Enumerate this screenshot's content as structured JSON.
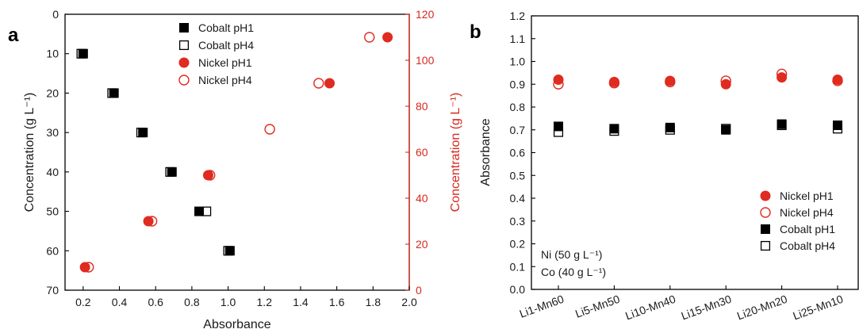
{
  "colors": {
    "black": "#000000",
    "red": "#e02b20",
    "axis_red": "#d7281f"
  },
  "chart_data": [
    {
      "panel": "a",
      "type": "scatter",
      "xlabel": "Absorbance",
      "ylabel": "Concentration (g L⁻¹)",
      "y2label": "Concentration (g L⁻¹)",
      "xlim": [
        0.1,
        2.0
      ],
      "ylim": [
        70,
        0
      ],
      "y2lim": [
        0,
        120
      ],
      "xticks": [
        "0.2",
        "0.4",
        "0.6",
        "0.8",
        "1.0",
        "1.2",
        "1.4",
        "1.6",
        "1.8",
        "2.0"
      ],
      "yticks": [
        "0",
        "10",
        "20",
        "30",
        "40",
        "50",
        "60",
        "70"
      ],
      "y2ticks": [
        "0",
        "20",
        "40",
        "60",
        "80",
        "100",
        "120"
      ],
      "legend_position": "top-center",
      "series": [
        {
          "name": "Cobalt pH1",
          "marker": "square-filled",
          "axis": "left",
          "points": [
            [
              0.2,
              10
            ],
            [
              0.37,
              20
            ],
            [
              0.53,
              30
            ],
            [
              0.69,
              40
            ],
            [
              0.84,
              50
            ],
            [
              1.01,
              60
            ]
          ]
        },
        {
          "name": "Cobalt pH4",
          "marker": "square-open",
          "axis": "left",
          "points": [
            [
              0.19,
              10
            ],
            [
              0.36,
              20
            ],
            [
              0.52,
              30
            ],
            [
              0.68,
              40
            ],
            [
              0.88,
              50
            ],
            [
              1.0,
              60
            ]
          ]
        },
        {
          "name": "Nickel pH1",
          "marker": "circle-filled",
          "axis": "right",
          "points": [
            [
              0.21,
              10
            ],
            [
              0.56,
              30
            ],
            [
              0.89,
              50
            ],
            [
              1.56,
              90
            ],
            [
              1.88,
              110
            ]
          ]
        },
        {
          "name": "Nickel pH4",
          "marker": "circle-open",
          "axis": "right",
          "points": [
            [
              0.23,
              10
            ],
            [
              0.58,
              30
            ],
            [
              0.9,
              50
            ],
            [
              1.23,
              70
            ],
            [
              1.5,
              90
            ],
            [
              1.78,
              110
            ]
          ]
        }
      ]
    },
    {
      "panel": "b",
      "type": "scatter",
      "xlabel": "",
      "ylabel": "Absorbance",
      "ylim": [
        0.0,
        1.2
      ],
      "yticks": [
        "0.0",
        "0.1",
        "0.2",
        "0.3",
        "0.4",
        "0.5",
        "0.6",
        "0.7",
        "0.8",
        "0.9",
        "1.0",
        "1.1",
        "1.2"
      ],
      "categories": [
        "Li1-Mn60",
        "Li5-Mn50",
        "Li10-Mn40",
        "Li15-Mn30",
        "Li20-Mn20",
        "Li25-Mn10"
      ],
      "legend_position": "bottom-right",
      "annotation": [
        "Ni (50 g L⁻¹)",
        "Co (40 g L⁻¹)"
      ],
      "series": [
        {
          "name": "Nickel pH1",
          "marker": "circle-filled",
          "values": [
            0.92,
            0.91,
            0.915,
            0.9,
            0.93,
            0.92
          ]
        },
        {
          "name": "Nickel pH4",
          "marker": "circle-open",
          "values": [
            0.9,
            0.905,
            0.91,
            0.915,
            0.945,
            0.915
          ]
        },
        {
          "name": "Cobalt pH1",
          "marker": "square-filled",
          "values": [
            0.715,
            0.705,
            0.71,
            0.7,
            0.725,
            0.72
          ]
        },
        {
          "name": "Cobalt pH4",
          "marker": "square-open",
          "values": [
            0.69,
            0.695,
            0.7,
            0.705,
            0.72,
            0.705
          ]
        }
      ]
    }
  ]
}
